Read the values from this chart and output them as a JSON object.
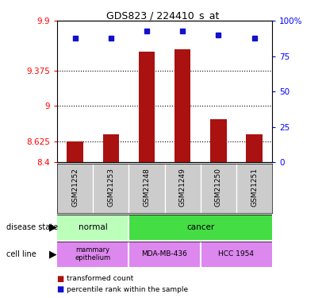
{
  "title": "GDS823 / 224410_s_at",
  "samples": [
    "GSM21252",
    "GSM21253",
    "GSM21248",
    "GSM21249",
    "GSM21250",
    "GSM21251"
  ],
  "bar_values": [
    8.625,
    8.7,
    9.57,
    9.6,
    8.86,
    8.7
  ],
  "percentile_values": [
    88,
    88,
    93,
    93,
    90,
    88
  ],
  "ylim_left": [
    8.4,
    9.9
  ],
  "ylim_right": [
    0,
    100
  ],
  "yticks_left": [
    8.4,
    8.625,
    9.0,
    9.375,
    9.9
  ],
  "ytick_labels_left": [
    "8.4",
    "8.625",
    "9",
    "9.375",
    "9.9"
  ],
  "yticks_right": [
    0,
    25,
    50,
    75,
    100
  ],
  "ytick_labels_right": [
    "0",
    "25",
    "50",
    "75",
    "100%"
  ],
  "hlines": [
    8.625,
    9.0,
    9.375
  ],
  "bar_color": "#aa1111",
  "dot_color": "#1111cc",
  "disease_colors": {
    "normal": "#bbffbb",
    "cancer": "#44dd44"
  },
  "cell_line_color": "#dd88ee",
  "plot_bg": "#ffffff"
}
